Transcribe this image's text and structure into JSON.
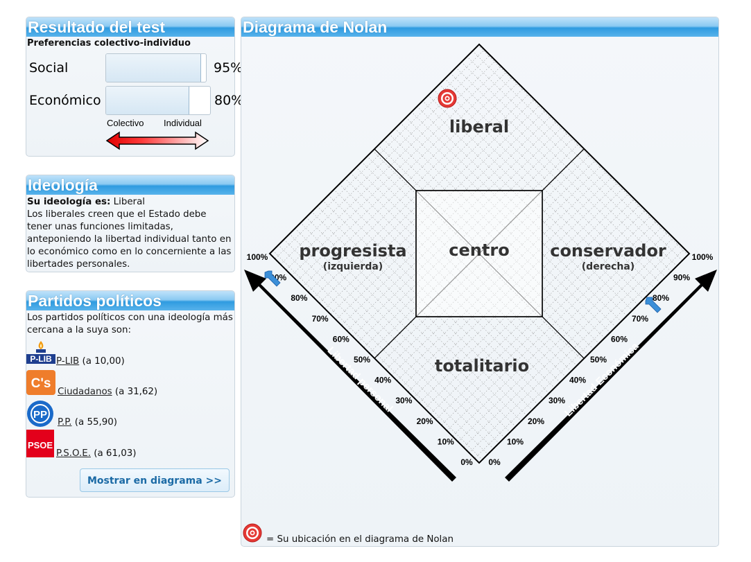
{
  "resultado": {
    "title": "Resultado del test",
    "subtitle": "Preferencias colectivo-individuo",
    "social": {
      "label": "Social",
      "value": 95,
      "pct": "95%"
    },
    "economico": {
      "label": "Económico",
      "value": 80,
      "pct": "80%"
    },
    "colectivo": "Colectivo",
    "individual": "Individual"
  },
  "ideologia": {
    "title": "Ideología",
    "prefix": "Su ideología es:",
    "name": "Liberal",
    "description": "Los liberales creen que el Estado debe tener unas funciones limitadas, anteponiendo la libertad individual tanto en lo económico como en lo concerniente a las libertades personales."
  },
  "partidos": {
    "title": "Partidos políticos",
    "intro": "Los partidos políticos con una ideología más cercana a la suya son:",
    "items": [
      {
        "logo": "P-LIB",
        "name": "P-LIB",
        "distance": "(a 10,00)"
      },
      {
        "logo": "C's",
        "name": "Ciudadanos",
        "distance": "(a 31,62)"
      },
      {
        "logo": "PP",
        "name": "P.P.",
        "distance": "(a 55,90)"
      },
      {
        "logo": "PSOE",
        "name": "P.S.O.E.",
        "distance": "(a 61,03)"
      }
    ],
    "button": "Mostrar en diagrama >>"
  },
  "diagrama": {
    "title": "Diagrama de Nolan",
    "regions": {
      "liberal": "liberal",
      "progresista": "progresista",
      "izquierda": "(izquierda)",
      "centro": "centro",
      "conservador": "conservador",
      "derecha": "(derecha)",
      "totalitario": "totalitario"
    },
    "axis_personal": "Libertad personal",
    "axis_economica": "Libertad Económica",
    "ticks": [
      "0%",
      "10%",
      "20%",
      "30%",
      "40%",
      "50%",
      "60%",
      "70%",
      "80%",
      "90%",
      "100%"
    ],
    "user_position": {
      "personal": 95,
      "economica": 80
    },
    "legend": "= Su ubicación en el diagrama de Nolan"
  },
  "colors": {
    "header": "#2f9be0",
    "arrow_red": "#e00000",
    "target_red": "#e53935"
  }
}
